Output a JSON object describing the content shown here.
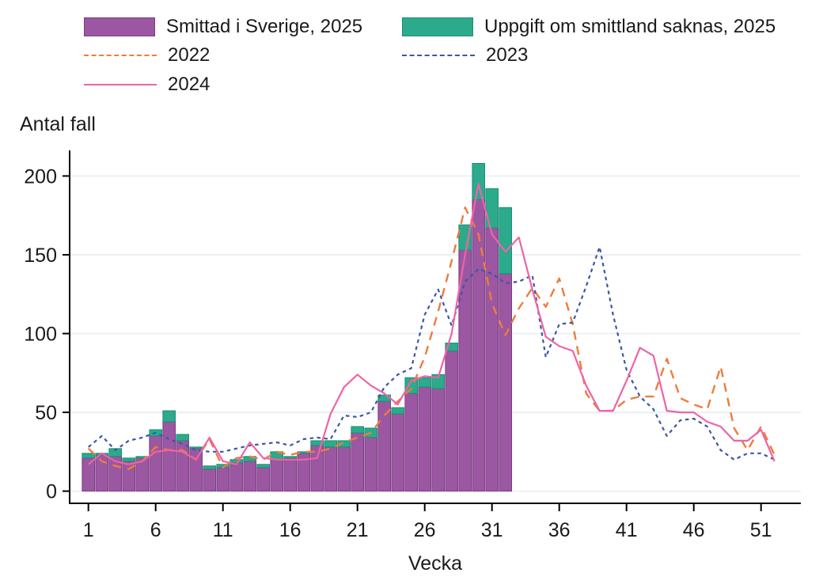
{
  "page": {
    "background": "#ffffff"
  },
  "legend": {
    "position": "top",
    "items": [
      {
        "label": "Smittad i Sverige, 2025",
        "type": "box",
        "color": "#9c57a2",
        "border": "#7b3d82"
      },
      {
        "label": "Uppgift om smittland saknas, 2025",
        "type": "box",
        "color": "#2caa8c",
        "border": "#1e8e74"
      },
      {
        "label": "2022",
        "type": "dashed-line",
        "color": "#ee7c3d"
      },
      {
        "label": "2023",
        "type": "dotted-line",
        "color": "#3b57a5"
      },
      {
        "label": "2024",
        "type": "solid-line",
        "color": "#ef63a5"
      }
    ]
  },
  "chart_data": {
    "type": "bar+line",
    "title": "",
    "grid": true,
    "grid_color": "#e9eff3",
    "legend_position": "top",
    "x_axis": {
      "title": "Vecka",
      "range": [
        1,
        52
      ],
      "tick_labels": [
        1,
        6,
        11,
        16,
        21,
        26,
        31,
        36,
        41,
        46,
        51
      ]
    },
    "y_axis": {
      "title": "Antal fall",
      "range": [
        0,
        215
      ],
      "tick_labels": [
        0,
        50,
        100,
        150,
        200
      ]
    },
    "weeks": [
      1,
      2,
      3,
      4,
      5,
      6,
      7,
      8,
      9,
      10,
      11,
      12,
      13,
      14,
      15,
      16,
      17,
      18,
      19,
      20,
      21,
      22,
      23,
      24,
      25,
      26,
      27,
      28,
      29,
      30,
      31,
      32,
      33,
      34,
      35,
      36,
      37,
      38,
      39,
      40,
      41,
      42,
      43,
      44,
      45,
      46,
      47,
      48,
      49,
      50,
      51,
      52
    ],
    "bars": {
      "stacked": true,
      "weeks": [
        1,
        2,
        3,
        4,
        5,
        6,
        7,
        8,
        9,
        10,
        11,
        12,
        13,
        14,
        15,
        16,
        17,
        18,
        19,
        20,
        21,
        22,
        23,
        24,
        25,
        26,
        27,
        28,
        29,
        30,
        31,
        32
      ],
      "series": [
        {
          "name": "Smittad i Sverige, 2025",
          "color": "#9c57a2",
          "border": "#7b3d82",
          "values": [
            21,
            23,
            22,
            19,
            21,
            35,
            44,
            32,
            27,
            14,
            15,
            18,
            19,
            15,
            20,
            21,
            24,
            29,
            28,
            28,
            37,
            34,
            57,
            49,
            62,
            66,
            65,
            89,
            153,
            185,
            167,
            138
          ]
        },
        {
          "name": "Uppgift om smittland saknas, 2025",
          "color": "#2caa8c",
          "border": "#1e8e74",
          "values": [
            3,
            1,
            5,
            2,
            1,
            4,
            7,
            4,
            1,
            2,
            2,
            2,
            3,
            2,
            5,
            1,
            1,
            3,
            4,
            4,
            4,
            6,
            4,
            4,
            10,
            6,
            9,
            5,
            16,
            23,
            25,
            42
          ]
        }
      ]
    },
    "lines": [
      {
        "name": "2022",
        "color": "#ee7c3d",
        "dash": "11 8",
        "width": 2.4,
        "values": [
          27,
          19,
          16,
          14,
          19,
          28,
          26,
          26,
          20,
          33,
          15,
          21,
          22,
          20,
          25,
          23,
          25,
          25,
          27,
          31,
          34,
          37,
          48,
          57,
          65,
          85,
          114,
          146,
          180,
          163,
          119,
          99,
          116,
          129,
          117,
          135,
          106,
          62,
          51,
          51,
          58,
          60,
          60,
          84,
          59,
          55,
          52,
          79,
          40,
          26,
          41,
          23
        ]
      },
      {
        "name": "2023",
        "color": "#3b57a5",
        "dash": "4.5 4.5",
        "width": 2.2,
        "values": [
          28,
          35,
          26,
          32,
          34,
          37,
          33,
          30,
          26,
          25,
          25,
          27,
          29,
          30,
          31,
          29,
          33,
          34,
          33,
          48,
          47,
          50,
          66,
          74,
          78,
          112,
          128,
          105,
          133,
          141,
          138,
          132,
          133,
          137,
          85,
          106,
          107,
          130,
          155,
          112,
          77,
          60,
          52,
          35,
          45,
          46,
          41,
          26,
          20,
          24,
          24,
          20
        ]
      },
      {
        "name": "2024",
        "color": "#ef63a5",
        "dash": "",
        "width": 2.2,
        "values": [
          17,
          24,
          19,
          17,
          19,
          25,
          26,
          25,
          20,
          34,
          19,
          17,
          31,
          21,
          20,
          20,
          20,
          21,
          49,
          66,
          74,
          67,
          62,
          55,
          70,
          73,
          72,
          100,
          150,
          195,
          163,
          152,
          161,
          128,
          98,
          92,
          89,
          67,
          51,
          51,
          70,
          91,
          86,
          51,
          50,
          50,
          44,
          41,
          32,
          32,
          39,
          19
        ]
      }
    ]
  }
}
